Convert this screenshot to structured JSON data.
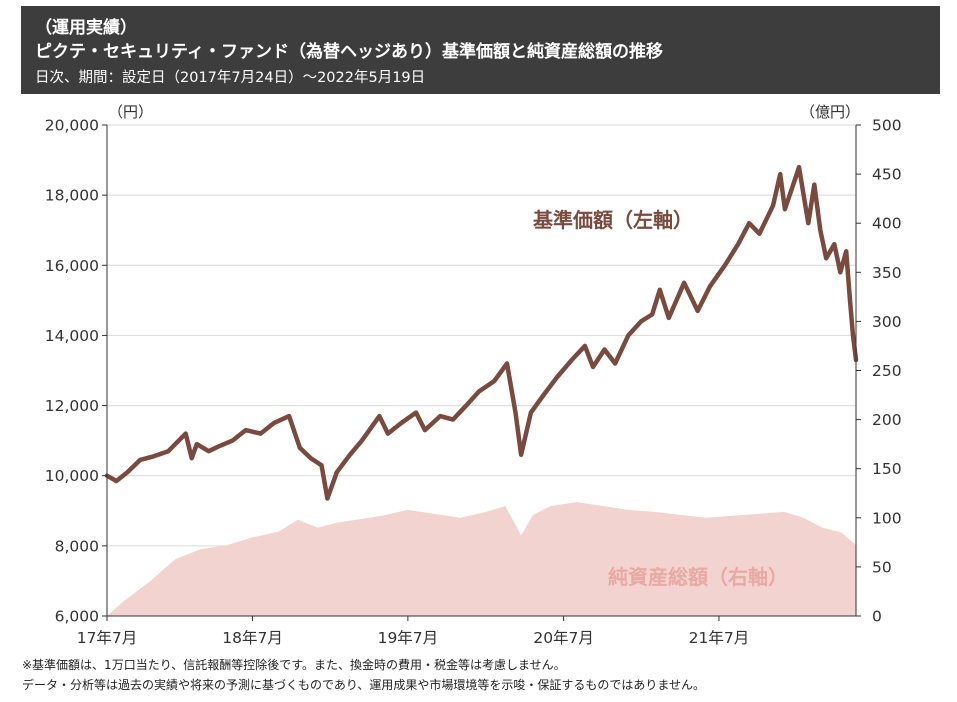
{
  "header": {
    "section": "（運用実績）",
    "title": "ピクテ・セキュリティ・ファンド（為替ヘッジあり）基準価額と純資産総額の推移",
    "subtitle": "日次、期間：設定日（2017年7月24日）～2022年5月19日"
  },
  "colors": {
    "header_bg": "#3d3d3d",
    "nav_line": "#7b4a3e",
    "aum_area": "#f3d3d0",
    "aum_label": "#e8a9a3",
    "grid": "#d9d9d9"
  },
  "chart_data": {
    "type": "line+area",
    "left_axis_unit": "（円）",
    "right_axis_unit": "（億円）",
    "left_ylim": [
      6000,
      20000
    ],
    "left_ticks": [
      "6,000",
      "8,000",
      "10,000",
      "12,000",
      "14,000",
      "16,000",
      "18,000",
      "20,000"
    ],
    "right_ylim": [
      0,
      500
    ],
    "right_ticks": [
      "0",
      "50",
      "100",
      "150",
      "200",
      "250",
      "300",
      "350",
      "400",
      "450",
      "500"
    ],
    "x_ticks": [
      "17年7月",
      "18年7月",
      "19年7月",
      "20年7月",
      "21年7月"
    ],
    "x_start": "2017-07-24",
    "x_end": "2022-05-19",
    "grid": true,
    "series": [
      {
        "name": "基準価額（左軸）",
        "kind": "line",
        "axis": "left",
        "points": [
          [
            "2017-07-24",
            10000
          ],
          [
            "2017-08-15",
            9850
          ],
          [
            "2017-09-10",
            10100
          ],
          [
            "2017-10-10",
            10450
          ],
          [
            "2017-11-10",
            10550
          ],
          [
            "2017-12-15",
            10700
          ],
          [
            "2018-01-25",
            11200
          ],
          [
            "2018-02-08",
            10500
          ],
          [
            "2018-02-20",
            10900
          ],
          [
            "2018-03-20",
            10700
          ],
          [
            "2018-04-15",
            10850
          ],
          [
            "2018-05-15",
            11000
          ],
          [
            "2018-06-15",
            11300
          ],
          [
            "2018-07-20",
            11200
          ],
          [
            "2018-08-20",
            11500
          ],
          [
            "2018-09-25",
            11700
          ],
          [
            "2018-10-20",
            10800
          ],
          [
            "2018-11-15",
            10500
          ],
          [
            "2018-12-10",
            10300
          ],
          [
            "2018-12-24",
            9350
          ],
          [
            "2019-01-15",
            10100
          ],
          [
            "2019-02-15",
            10600
          ],
          [
            "2019-03-15",
            11000
          ],
          [
            "2019-04-25",
            11700
          ],
          [
            "2019-05-15",
            11200
          ],
          [
            "2019-06-15",
            11500
          ],
          [
            "2019-07-20",
            11800
          ],
          [
            "2019-08-10",
            11300
          ],
          [
            "2019-09-15",
            11700
          ],
          [
            "2019-10-15",
            11600
          ],
          [
            "2019-11-15",
            12000
          ],
          [
            "2019-12-15",
            12400
          ],
          [
            "2020-01-20",
            12700
          ],
          [
            "2020-02-19",
            13200
          ],
          [
            "2020-03-10",
            11800
          ],
          [
            "2020-03-23",
            10600
          ],
          [
            "2020-04-15",
            11800
          ],
          [
            "2020-05-15",
            12300
          ],
          [
            "2020-06-15",
            12800
          ],
          [
            "2020-07-20",
            13300
          ],
          [
            "2020-08-20",
            13700
          ],
          [
            "2020-09-08",
            13100
          ],
          [
            "2020-10-05",
            13600
          ],
          [
            "2020-10-30",
            13200
          ],
          [
            "2020-11-30",
            14000
          ],
          [
            "2020-12-30",
            14400
          ],
          [
            "2021-01-25",
            14600
          ],
          [
            "2021-02-12",
            15300
          ],
          [
            "2021-03-05",
            14500
          ],
          [
            "2021-04-10",
            15500
          ],
          [
            "2021-05-12",
            14700
          ],
          [
            "2021-06-10",
            15400
          ],
          [
            "2021-07-15",
            16000
          ],
          [
            "2021-08-15",
            16600
          ],
          [
            "2021-09-10",
            17200
          ],
          [
            "2021-10-04",
            16900
          ],
          [
            "2021-11-05",
            17700
          ],
          [
            "2021-11-22",
            18600
          ],
          [
            "2021-12-03",
            17600
          ],
          [
            "2021-12-28",
            18500
          ],
          [
            "2022-01-05",
            18800
          ],
          [
            "2022-01-27",
            17200
          ],
          [
            "2022-02-10",
            18300
          ],
          [
            "2022-02-24",
            17000
          ],
          [
            "2022-03-10",
            16200
          ],
          [
            "2022-03-29",
            16600
          ],
          [
            "2022-04-12",
            15800
          ],
          [
            "2022-04-26",
            16400
          ],
          [
            "2022-05-05",
            15000
          ],
          [
            "2022-05-12",
            14000
          ],
          [
            "2022-05-19",
            13300
          ]
        ]
      },
      {
        "name": "純資産総額（右軸）",
        "kind": "area",
        "axis": "right",
        "points": [
          [
            "2017-07-24",
            0
          ],
          [
            "2017-09-01",
            15
          ],
          [
            "2017-11-01",
            35
          ],
          [
            "2018-01-01",
            58
          ],
          [
            "2018-03-01",
            68
          ],
          [
            "2018-05-01",
            72
          ],
          [
            "2018-07-01",
            80
          ],
          [
            "2018-09-01",
            86
          ],
          [
            "2018-10-15",
            98
          ],
          [
            "2018-12-01",
            90
          ],
          [
            "2019-01-15",
            95
          ],
          [
            "2019-03-01",
            98
          ],
          [
            "2019-05-01",
            102
          ],
          [
            "2019-07-01",
            108
          ],
          [
            "2019-09-01",
            104
          ],
          [
            "2019-11-01",
            100
          ],
          [
            "2020-01-01",
            106
          ],
          [
            "2020-02-15",
            112
          ],
          [
            "2020-03-23",
            82
          ],
          [
            "2020-04-20",
            103
          ],
          [
            "2020-06-01",
            112
          ],
          [
            "2020-08-01",
            116
          ],
          [
            "2020-10-01",
            112
          ],
          [
            "2020-12-01",
            108
          ],
          [
            "2021-02-01",
            106
          ],
          [
            "2021-04-01",
            103
          ],
          [
            "2021-06-01",
            100
          ],
          [
            "2021-08-01",
            102
          ],
          [
            "2021-10-01",
            104
          ],
          [
            "2021-12-01",
            106
          ],
          [
            "2022-01-15",
            100
          ],
          [
            "2022-03-01",
            90
          ],
          [
            "2022-04-15",
            85
          ],
          [
            "2022-05-19",
            72
          ]
        ]
      }
    ]
  },
  "notes": [
    "※基準価額は、1万口当たり、信託報酬等控除後です。また、換金時の費用・税金等は考慮しません。",
    "データ・分析等は過去の実績や将来の予測に基づくものであり、運用成果や市場環境等を示唆・保証するものではありません。"
  ]
}
